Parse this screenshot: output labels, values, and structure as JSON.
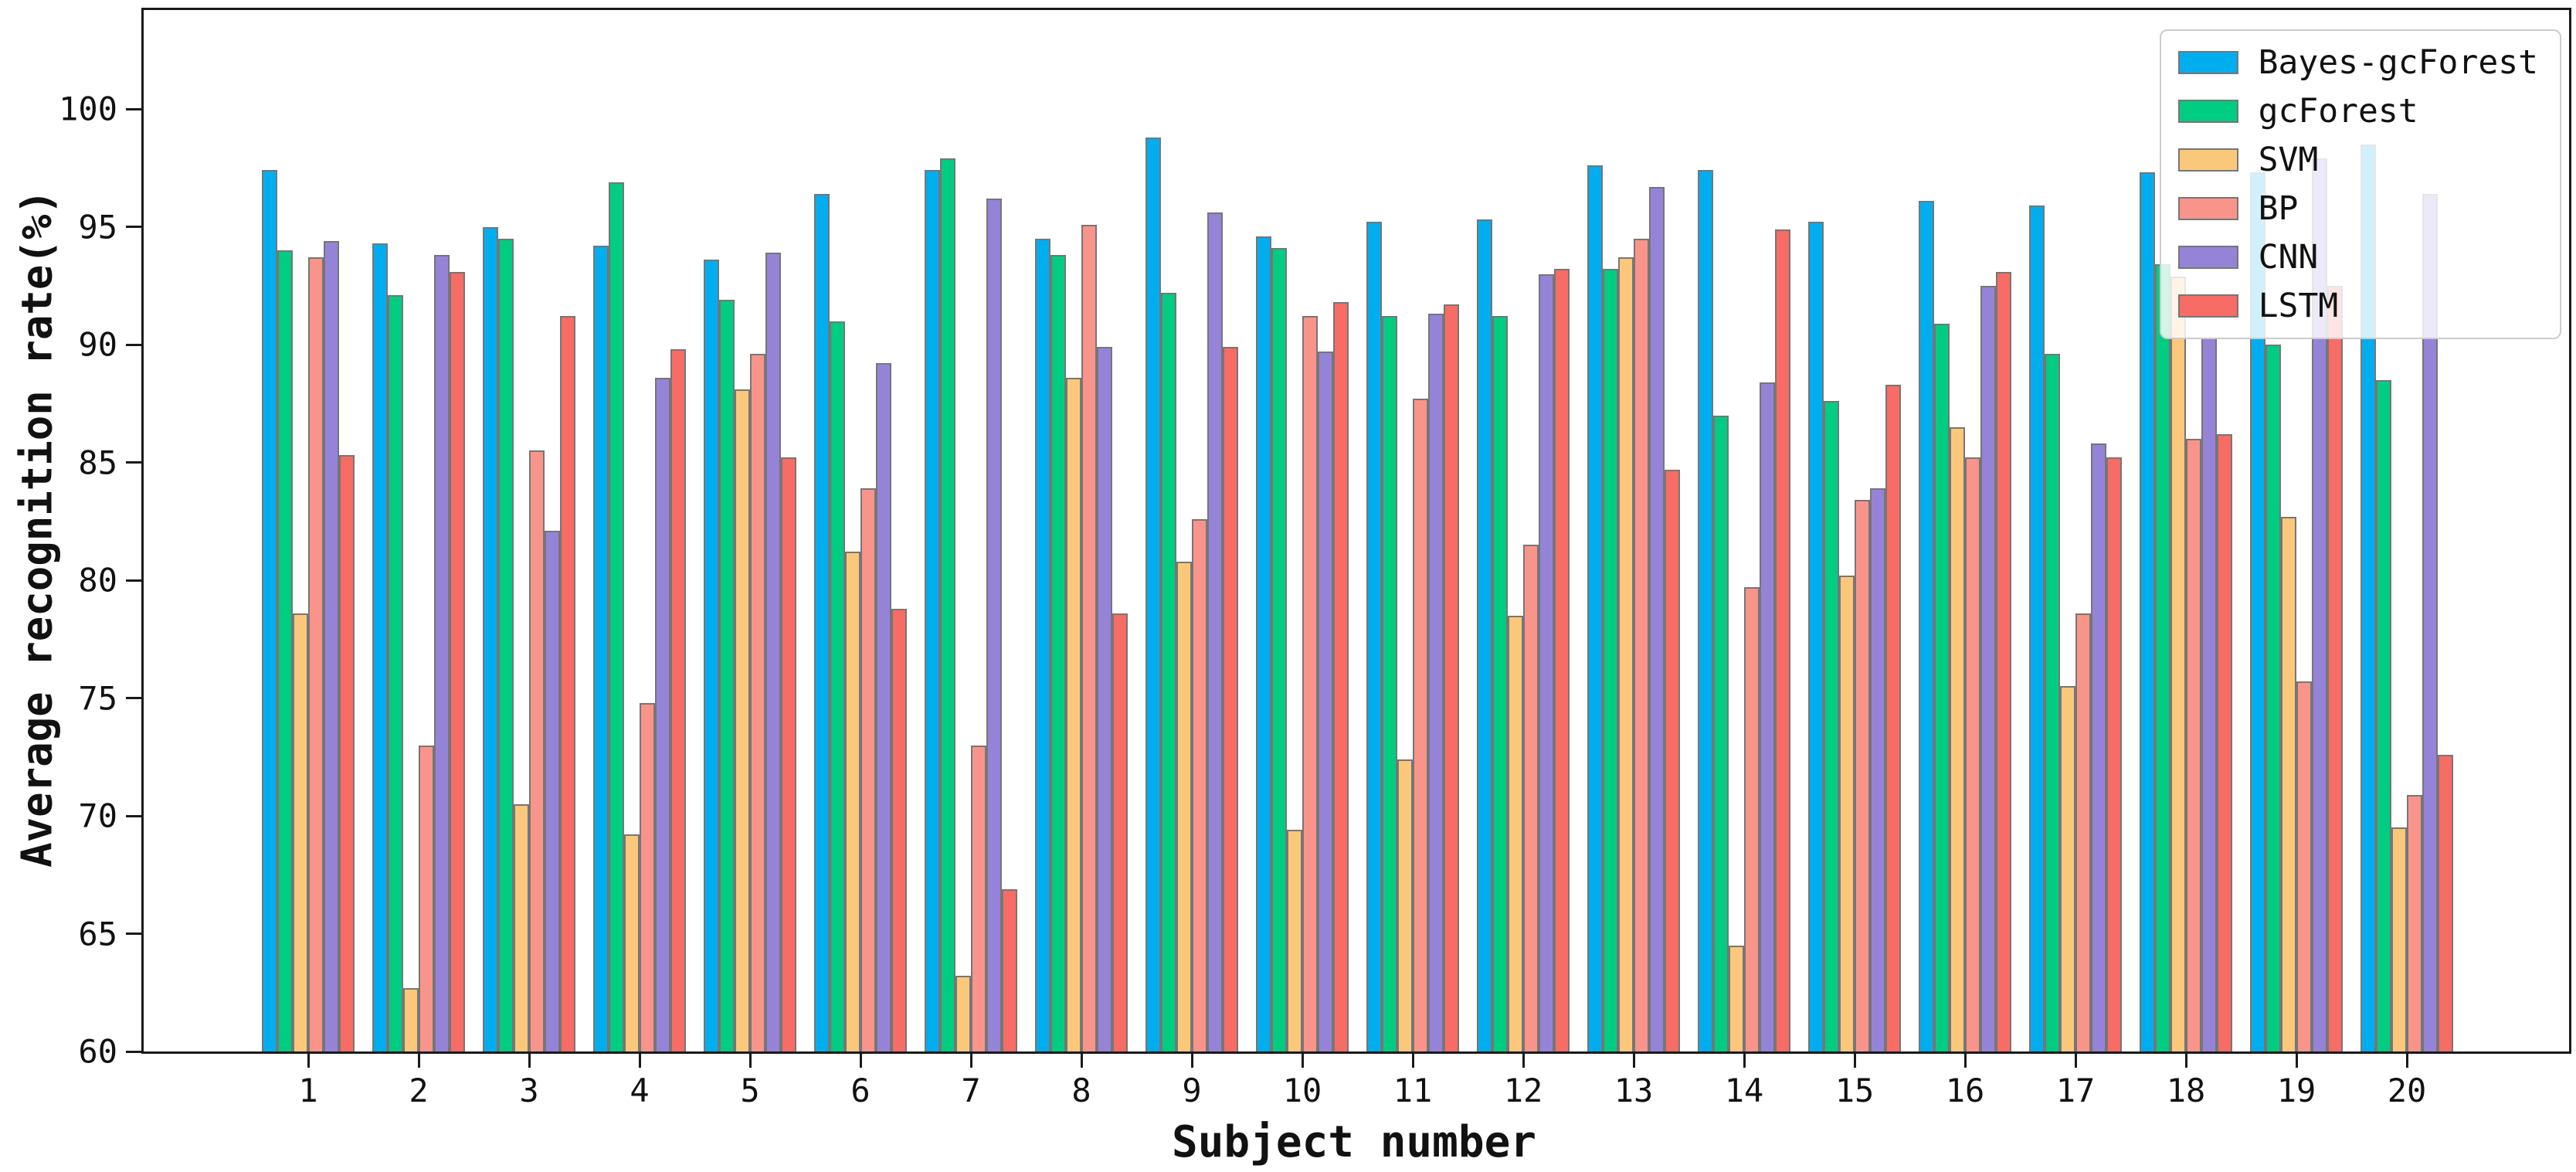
{
  "chart_data": {
    "type": "bar",
    "title": "",
    "xlabel": "Subject number",
    "ylabel": "Average recognition rate(%)",
    "categories": [
      "1",
      "2",
      "3",
      "4",
      "5",
      "6",
      "7",
      "8",
      "9",
      "10",
      "11",
      "12",
      "13",
      "14",
      "15",
      "16",
      "17",
      "18",
      "19",
      "20"
    ],
    "ylim": [
      60,
      104.2
    ],
    "yticks": [
      60,
      65,
      70,
      75,
      80,
      85,
      90,
      95,
      100
    ],
    "grid": false,
    "legend_position": "upper right",
    "bar_edge_color": "#767676",
    "series": [
      {
        "name": "Bayes-gcForest",
        "color": "#00AEEF",
        "values": [
          97.4,
          94.3,
          95.0,
          94.2,
          93.6,
          96.4,
          97.4,
          94.5,
          98.8,
          94.6,
          95.2,
          95.3,
          97.6,
          97.4,
          95.2,
          96.1,
          95.9,
          97.3,
          97.3,
          98.5
        ]
      },
      {
        "name": "gcForest",
        "color": "#00CC82",
        "values": [
          94.0,
          92.1,
          94.5,
          96.9,
          91.9,
          91.0,
          97.9,
          93.8,
          92.2,
          94.1,
          91.2,
          91.2,
          93.2,
          87.0,
          87.6,
          90.9,
          89.6,
          93.4,
          90.0,
          88.5
        ]
      },
      {
        "name": "SVM",
        "color": "#FBC87B",
        "values": [
          78.6,
          62.7,
          70.5,
          69.2,
          88.1,
          81.2,
          63.2,
          88.6,
          80.8,
          69.4,
          72.4,
          78.5,
          93.7,
          64.5,
          80.2,
          86.5,
          75.5,
          92.9,
          82.7,
          69.5
        ]
      },
      {
        "name": "BP",
        "color": "#F9948B",
        "values": [
          93.7,
          73.0,
          85.5,
          74.8,
          89.6,
          83.9,
          73.0,
          95.1,
          82.6,
          91.2,
          87.7,
          81.5,
          94.5,
          79.7,
          83.4,
          85.2,
          78.6,
          86.0,
          75.7,
          70.9
        ]
      },
      {
        "name": "CNN",
        "color": "#9583D8",
        "values": [
          94.4,
          93.8,
          82.1,
          88.6,
          93.9,
          89.2,
          96.2,
          89.9,
          95.6,
          89.7,
          91.3,
          93.0,
          96.7,
          88.4,
          83.9,
          92.5,
          85.8,
          90.3,
          97.9,
          96.4
        ]
      },
      {
        "name": "LSTM",
        "color": "#F76C64",
        "values": [
          85.3,
          93.1,
          91.2,
          89.8,
          85.2,
          78.8,
          66.9,
          78.6,
          89.9,
          91.8,
          91.7,
          93.2,
          84.7,
          94.9,
          88.3,
          93.1,
          85.2,
          86.2,
          92.5,
          72.6
        ]
      }
    ]
  }
}
